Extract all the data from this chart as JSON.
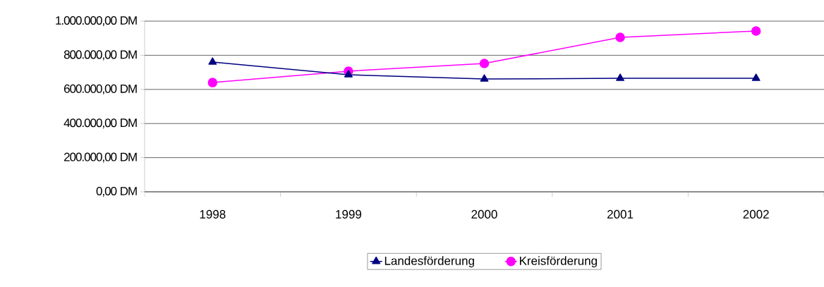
{
  "chart_data": {
    "type": "line",
    "categories": [
      "1998",
      "1999",
      "2000",
      "2001",
      "2002"
    ],
    "series": [
      {
        "name": "Landesförderung",
        "color": "#000080",
        "marker": "triangle",
        "values": [
          760000,
          686000,
          661000,
          665000,
          665000
        ]
      },
      {
        "name": "Kreisförderung",
        "color": "#ff00ff",
        "marker": "circle",
        "values": [
          640000,
          707000,
          752000,
          905000,
          942000
        ]
      }
    ],
    "ylim": [
      0,
      1000000
    ],
    "yticks": [
      {
        "value": 0,
        "label": "0,00 DM"
      },
      {
        "value": 200000,
        "label": "200.000,00 DM"
      },
      {
        "value": 400000,
        "label": "400.000,00 DM"
      },
      {
        "value": 600000,
        "label": "600.000,00 DM"
      },
      {
        "value": 800000,
        "label": "800.000,00 DM"
      },
      {
        "value": 1000000,
        "label": "1.000.000,00 DM"
      }
    ],
    "grid": "y",
    "legend": "bottom",
    "line_style": "solid"
  }
}
